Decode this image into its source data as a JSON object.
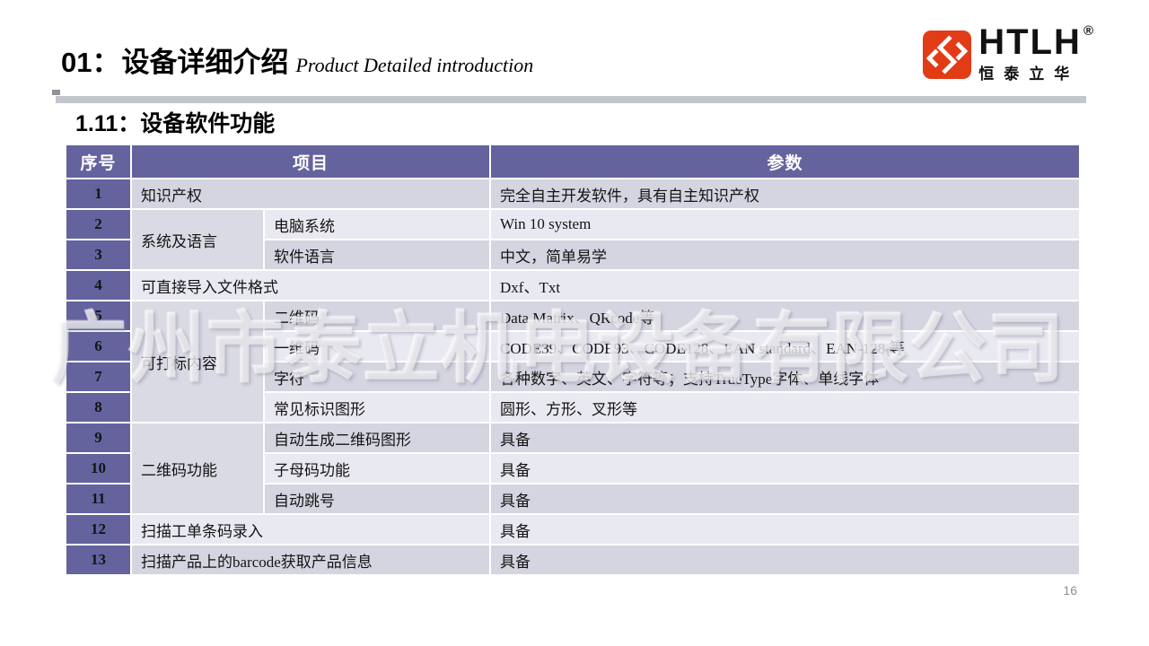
{
  "colors": {
    "header_bg": "#64639E",
    "row_dark": "#D5D5E1",
    "row_light": "#E9E9F1",
    "group_bg": "#DADAE5",
    "brand_orange": "#E23C17"
  },
  "header": {
    "section_number": "01：",
    "section_title_zh": "设备详细介绍",
    "section_title_en": "Product Detailed introduction",
    "logo": {
      "icon": "htlh-monogram-icon",
      "word": "HTLH",
      "registered_mark": "®",
      "subtext": "恒泰立华"
    }
  },
  "subtitle": "1.11：设备软件功能",
  "watermark": "广州市泰立机电设备有限公司",
  "page_number": "16",
  "table": {
    "columns": [
      "序号",
      "项目",
      "参数"
    ],
    "rows": [
      {
        "num": "1",
        "shade": "dark",
        "cells": [
          {
            "t": "知识产权",
            "type": "item",
            "colspan": 2
          },
          {
            "t": "完全自主开发软件，具有自主知识产权",
            "type": "param"
          }
        ]
      },
      {
        "num": "2",
        "shade": "light",
        "cells": [
          {
            "t": "系统及语言",
            "type": "group",
            "rowspan": 2
          },
          {
            "t": "电脑系统",
            "type": "item"
          },
          {
            "t": "Win 10 system",
            "type": "param"
          }
        ]
      },
      {
        "num": "3",
        "shade": "dark",
        "cells": [
          {
            "t": "软件语言",
            "type": "item"
          },
          {
            "t": "中文，简单易学",
            "type": "param"
          }
        ]
      },
      {
        "num": "4",
        "shade": "light",
        "cells": [
          {
            "t": "可直接导入文件格式",
            "type": "item",
            "colspan": 2
          },
          {
            "t": "Dxf、Txt",
            "type": "param"
          }
        ]
      },
      {
        "num": "5",
        "shade": "dark",
        "cells": [
          {
            "t": "可打标内容",
            "type": "group",
            "rowspan": 4
          },
          {
            "t": "二维码",
            "type": "item"
          },
          {
            "t": "Data Matrix、QRcode等",
            "type": "param"
          }
        ]
      },
      {
        "num": "6",
        "shade": "light",
        "cells": [
          {
            "t": "一维码",
            "type": "item"
          },
          {
            "t": "CODE39、CODE93、CODE128、EAN standard、EAN-128 等",
            "type": "param"
          }
        ]
      },
      {
        "num": "7",
        "shade": "dark",
        "cells": [
          {
            "t": "字符",
            "type": "item"
          },
          {
            "t": "各种数字、英文、字符等；支持TrueType字体、单线字体",
            "type": "param"
          }
        ]
      },
      {
        "num": "8",
        "shade": "light",
        "cells": [
          {
            "t": "常见标识图形",
            "type": "item"
          },
          {
            "t": "圆形、方形、叉形等",
            "type": "param"
          }
        ]
      },
      {
        "num": "9",
        "shade": "dark",
        "cells": [
          {
            "t": "二维码功能",
            "type": "group",
            "rowspan": 3
          },
          {
            "t": "自动生成二维码图形",
            "type": "item"
          },
          {
            "t": "具备",
            "type": "param"
          }
        ]
      },
      {
        "num": "10",
        "shade": "light",
        "cells": [
          {
            "t": "子母码功能",
            "type": "item"
          },
          {
            "t": "具备",
            "type": "param"
          }
        ]
      },
      {
        "num": "11",
        "shade": "dark",
        "cells": [
          {
            "t": "自动跳号",
            "type": "item"
          },
          {
            "t": "具备",
            "type": "param"
          }
        ]
      },
      {
        "num": "12",
        "shade": "light",
        "cells": [
          {
            "t": "扫描工单条码录入",
            "type": "item",
            "colspan": 2
          },
          {
            "t": "具备",
            "type": "param"
          }
        ]
      },
      {
        "num": "13",
        "shade": "dark",
        "cells": [
          {
            "t": "扫描产品上的barcode获取产品信息",
            "type": "item",
            "colspan": 2
          },
          {
            "t": "具备",
            "type": "param"
          }
        ]
      }
    ]
  }
}
